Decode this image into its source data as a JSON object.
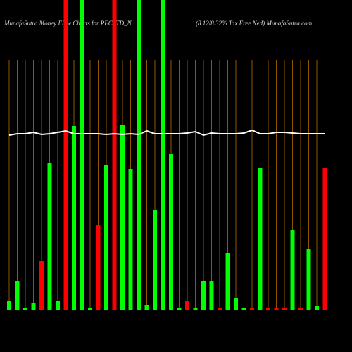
{
  "chart_data": {
    "type": "bar",
    "title": "MunafaSutra  Money Flow  Charts for RECLTD_N",
    "subtitle": "(8.12/8.32% Tax Free    Ned) MunafaSutra.com",
    "ylim": [
      0,
      440
    ],
    "values": [
      13,
      41,
      3,
      9,
      69,
      209,
      12,
      440,
      261,
      440,
      2,
      121,
      205,
      440,
      263,
      200,
      440,
      7,
      141,
      440,
      221,
      2,
      12,
      2,
      41,
      41,
      2,
      81,
      17,
      2,
      2,
      201,
      2,
      2,
      2,
      114,
      2,
      87,
      6,
      201
    ],
    "colors": [
      "#00ff00",
      "#00ff00",
      "#00ff00",
      "#00ff00",
      "#ff0000",
      "#00ff00",
      "#00ff00",
      "#ff0000",
      "#00ff00",
      "#00ff00",
      "#00ff00",
      "#ff0000",
      "#00ff00",
      "#ff0000",
      "#00ff00",
      "#00ff00",
      "#00ff00",
      "#00ff00",
      "#00ff00",
      "#00ff00",
      "#00ff00",
      "#00ff00",
      "#ff0000",
      "#00ff00",
      "#00ff00",
      "#00ff00",
      "#ff0000",
      "#00ff00",
      "#00ff00",
      "#00ff00",
      "#ff0000",
      "#00ff00",
      "#ff0000",
      "#ff0000",
      "#ff0000",
      "#00ff00",
      "#ff0000",
      "#00ff00",
      "#00ff00",
      "#ff0000"
    ],
    "line": [
      248,
      250,
      250,
      252,
      249,
      250,
      252,
      254,
      250,
      250,
      250,
      250,
      249,
      250,
      249,
      250,
      249,
      254,
      250,
      250,
      250,
      250,
      251,
      253,
      248,
      251,
      250,
      250,
      250,
      251,
      255,
      250,
      250,
      252,
      252,
      251,
      250,
      250,
      250,
      250
    ],
    "line_color": "#ffffff",
    "grid_color": "#b86a00"
  }
}
